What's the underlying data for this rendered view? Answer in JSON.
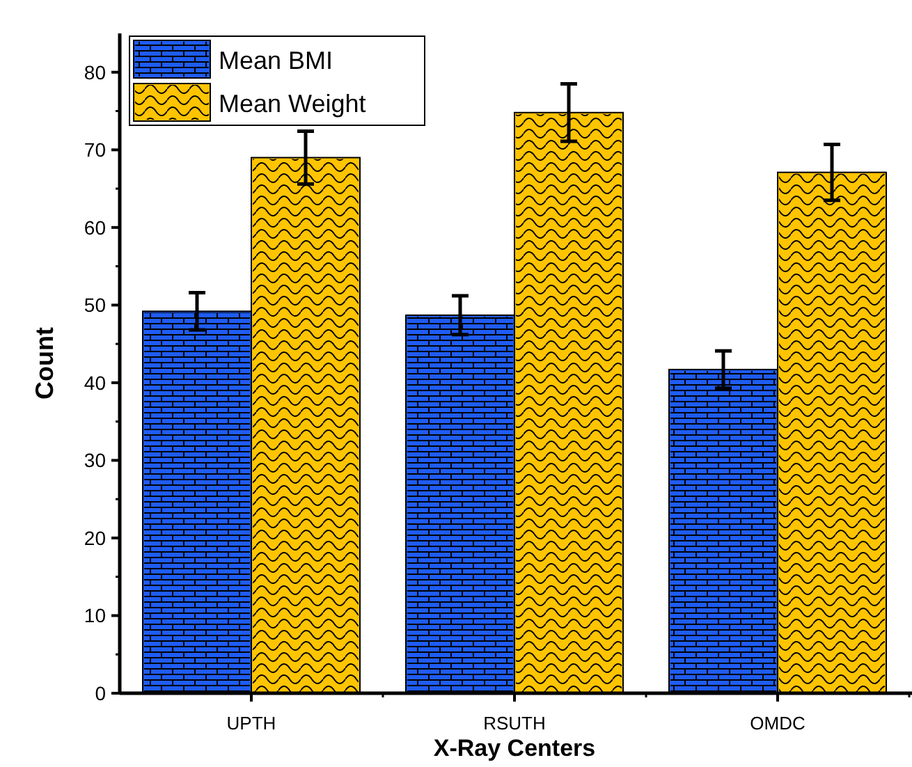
{
  "chart_data": {
    "type": "bar",
    "xlabel": "X-Ray Centers",
    "ylabel": "Count",
    "categories": [
      "UPTH",
      "RSUTH",
      "OMDC"
    ],
    "series": [
      {
        "name": "Mean BMI",
        "color": "#1f5cf2",
        "values": [
          49.2,
          48.7,
          41.7
        ],
        "errors": [
          2.4,
          2.5,
          2.4
        ]
      },
      {
        "name": "Mean Weight",
        "color": "#ffc400",
        "values": [
          69.0,
          74.8,
          67.1
        ],
        "errors": [
          3.4,
          3.7,
          3.6
        ]
      }
    ],
    "ylim": [
      0,
      85
    ],
    "yticks": [
      0,
      10,
      20,
      30,
      40,
      50,
      60,
      70,
      80
    ],
    "legend": "top left"
  }
}
